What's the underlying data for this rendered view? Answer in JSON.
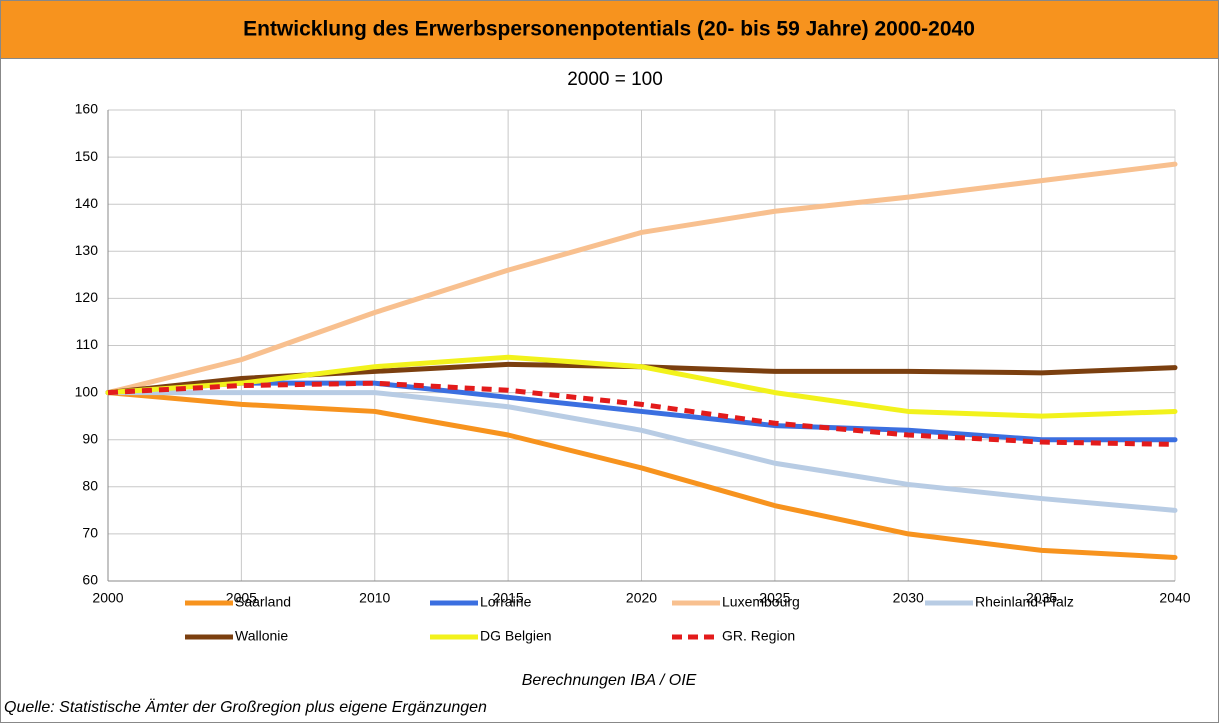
{
  "chart_data": {
    "type": "line",
    "title": "Entwicklung des Erwerbspersonenpotentials (20- bis 59 Jahre) 2000-2040",
    "subtitle": "2000 = 100",
    "x": [
      2000,
      2005,
      2010,
      2015,
      2020,
      2025,
      2030,
      2035,
      2040
    ],
    "series": [
      {
        "name": "Saarland",
        "color": "#f7931e",
        "values": [
          100,
          97.5,
          96,
          91,
          84,
          76,
          70,
          66.5,
          65
        ]
      },
      {
        "name": "Lorraine",
        "color": "#3b6fe0",
        "values": [
          100,
          102,
          102,
          99,
          96,
          93,
          92,
          90,
          90
        ]
      },
      {
        "name": "Luxembourg",
        "color": "#f8c08f",
        "values": [
          100,
          107,
          117,
          126,
          134,
          138.5,
          141.5,
          145,
          148.5
        ]
      },
      {
        "name": "Rheinland-Pfalz",
        "color": "#b8cce4",
        "values": [
          100,
          100,
          100,
          97,
          92,
          85,
          80.5,
          77.5,
          75
        ]
      },
      {
        "name": "Wallonie",
        "color": "#7b3f0f",
        "values": [
          100,
          103,
          104.5,
          106,
          105.5,
          104.5,
          104.5,
          104.2,
          105.3
        ]
      },
      {
        "name": "DG Belgien",
        "color": "#f2f21c",
        "values": [
          100,
          102,
          105.5,
          107.5,
          105.5,
          100,
          96,
          95,
          96
        ]
      },
      {
        "name": "GR. Region",
        "color": "#e31b1b",
        "dashed": true,
        "values": [
          100,
          101.5,
          102,
          100.5,
          97.5,
          93.5,
          91,
          89.5,
          89
        ]
      }
    ],
    "xlim": [
      2000,
      2040
    ],
    "xticks": [
      2000,
      2005,
      2010,
      2015,
      2020,
      2025,
      2030,
      2035,
      2040
    ],
    "ylim": [
      60,
      160
    ],
    "yticks": [
      60,
      70,
      80,
      90,
      100,
      110,
      120,
      130,
      140,
      150,
      160
    ],
    "grid": true,
    "note": "Berechnungen IBA / OIE",
    "source": "Quelle: Statistische Ämter der Großregion plus eigene Ergänzungen"
  }
}
